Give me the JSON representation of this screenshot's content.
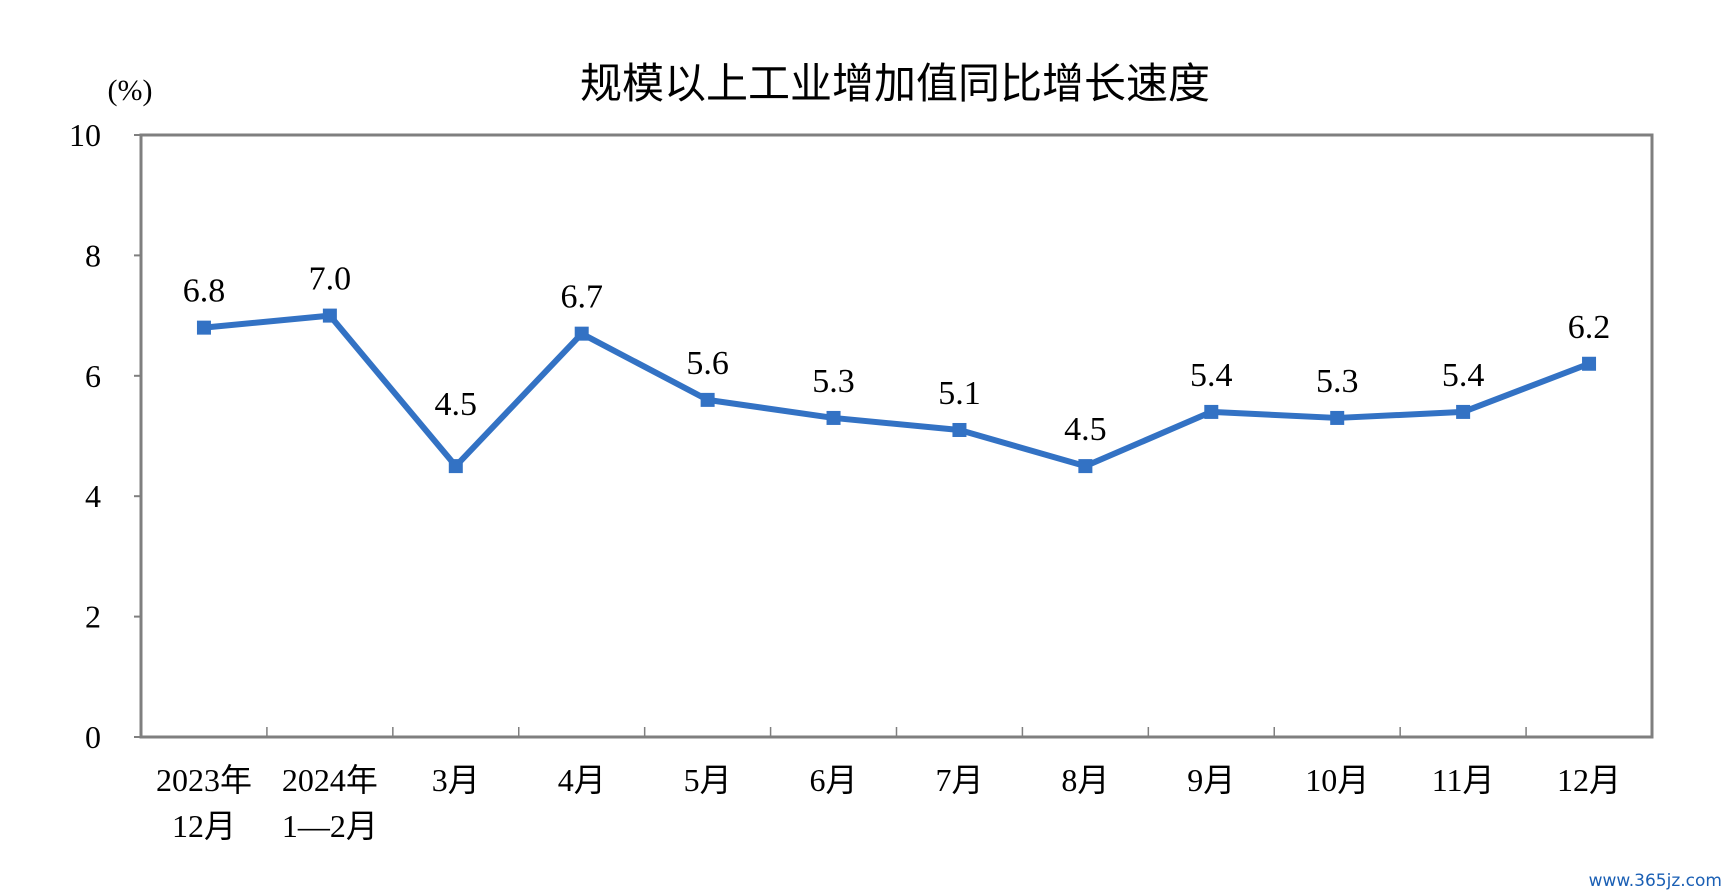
{
  "watermark": "www.365jz.com",
  "colors": {
    "line": "#3372C4",
    "axis": "#7f7f7f",
    "text": "#000000"
  },
  "chart_data": {
    "type": "line",
    "title": "规模以上工业增加值同比增长速度",
    "ylabel": "(%)",
    "xlabel": "",
    "ylim": [
      0,
      10
    ],
    "yticks": [
      "0",
      "2",
      "4",
      "6",
      "8",
      "10"
    ],
    "grid": false,
    "legend": "none",
    "categories": [
      [
        "2023年",
        "12月"
      ],
      [
        "2024年",
        "1—2月"
      ],
      [
        "3月"
      ],
      [
        "4月"
      ],
      [
        "5月"
      ],
      [
        "6月"
      ],
      [
        "7月"
      ],
      [
        "8月"
      ],
      [
        "9月"
      ],
      [
        "10月"
      ],
      [
        "11月"
      ],
      [
        "12月"
      ]
    ],
    "series": [
      {
        "values": [
          6.8,
          7.0,
          4.5,
          6.7,
          5.6,
          5.3,
          5.1,
          4.5,
          5.4,
          5.3,
          5.4,
          6.2
        ],
        "labels": [
          "6.8",
          "7.0",
          "4.5",
          "6.7",
          "5.6",
          "5.3",
          "5.1",
          "4.5",
          "5.4",
          "5.3",
          "5.4",
          "6.2"
        ]
      }
    ]
  }
}
